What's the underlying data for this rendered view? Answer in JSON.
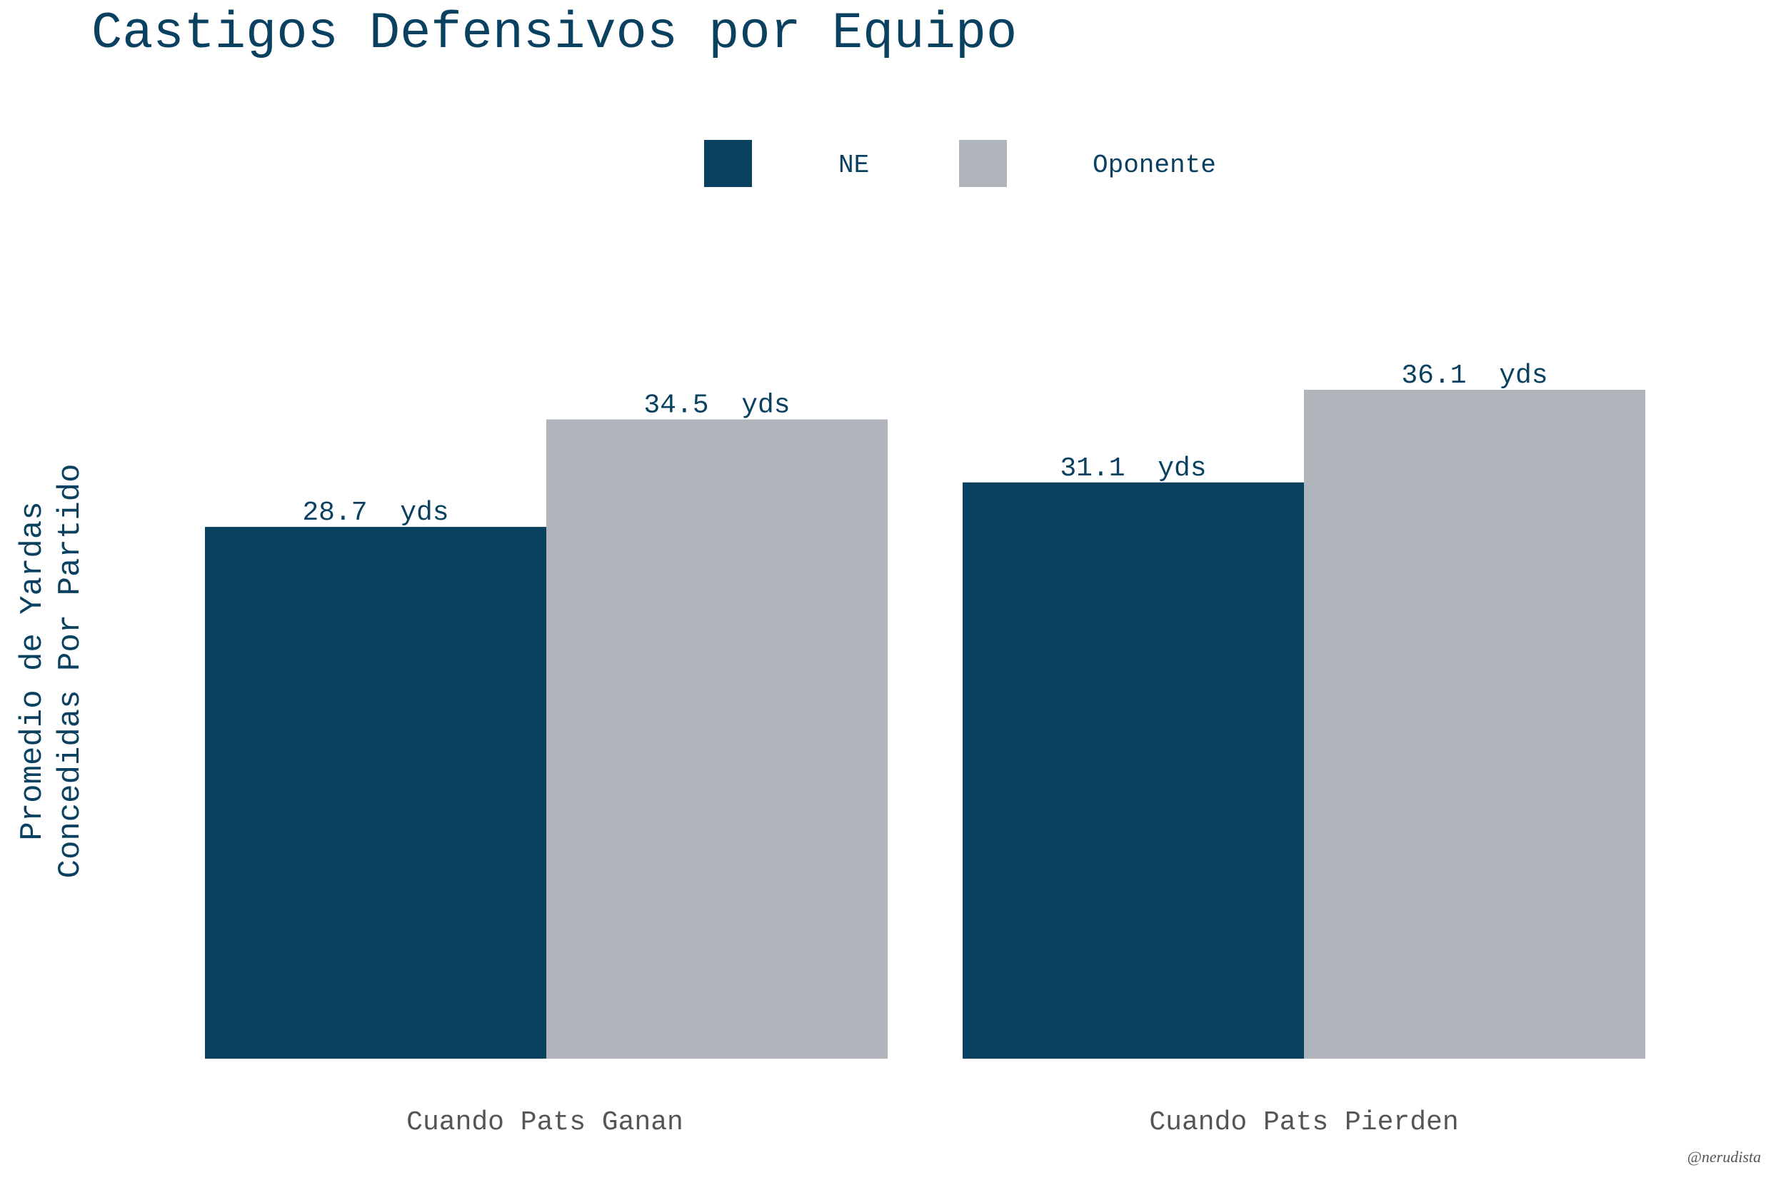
{
  "chart_data": {
    "type": "bar",
    "title": "Castigos Defensivos por Equipo",
    "ylabel_lines": [
      "Promedio de Yardas",
      "Concedidas Por Partido"
    ],
    "xlabel": "",
    "categories": [
      "Cuando Pats Ganan",
      "Cuando Pats Pierden"
    ],
    "series": [
      {
        "name": "NE",
        "values": [
          28.7,
          31.1
        ],
        "color": "#0a4160",
        "labels": [
          "28.7  yds",
          "31.1  yds"
        ]
      },
      {
        "name": "Oponente",
        "values": [
          34.5,
          36.1
        ],
        "color": "#afb5bb",
        "labels": [
          "34.5  yds",
          "36.1  yds"
        ]
      }
    ],
    "ylim": [
      0,
      36.1
    ],
    "grid": false,
    "legend_position": "top-center",
    "caption": "@nerudista",
    "text_color": "#0a4160",
    "axis_text_color": "#555555"
  }
}
